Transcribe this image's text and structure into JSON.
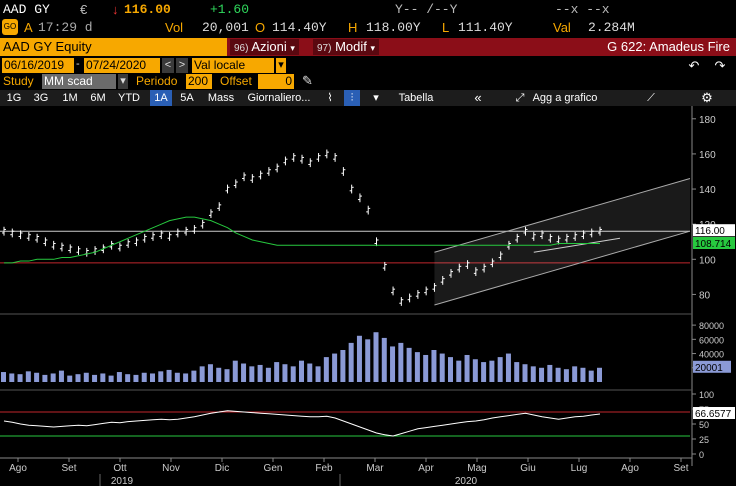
{
  "quote": {
    "ticker": "AAD GY",
    "currency": "€",
    "arrow": "↓",
    "price": "116.00",
    "change": "+1.60",
    "y_indicators": "Y--  /--Y",
    "dash_indicators": "--x  --x"
  },
  "status": {
    "icon_label": "GO",
    "flag": "A",
    "time": "17:29 d",
    "vol_label": "Vol",
    "vol_value": "20,001",
    "open_label": "O",
    "open_value": "114.40Y",
    "high_label": "H",
    "high_value": "118.00Y",
    "low_label": "L",
    "low_value": "111.40Y",
    "val_label": "Val",
    "val_value": "2.284M"
  },
  "titlebar": {
    "security": "AAD GY Equity",
    "azioni_num": "96)",
    "azioni": "Azioni",
    "modif_num": "97)",
    "modif": "Modif",
    "fund": "G 622: Amadeus Fire"
  },
  "daterow": {
    "start_date": "06/16/2019",
    "end_date": "07/24/2020",
    "nav_prev": "<",
    "nav_next": ">",
    "currency_field": "Val locale",
    "undo": "↶",
    "redo": "↷"
  },
  "studyrow": {
    "study_label": "Study",
    "study_value": "MM scad",
    "period_label": "Periodo",
    "period_value": "200",
    "offset_label": "Offset",
    "offset_value": "0"
  },
  "toolbar": {
    "items": [
      "1G",
      "3G",
      "1M",
      "6M",
      "YTD",
      "1A",
      "5A",
      "Mass",
      "Giornaliero..."
    ],
    "active": "1A",
    "tabella": "Tabella",
    "collapse": "«",
    "add_chart": "Agg a grafico"
  },
  "chart_data": [
    {
      "type": "line",
      "panel": "price",
      "y_ticks": [
        80,
        100,
        120,
        140,
        160,
        180
      ],
      "ylim": [
        70,
        185
      ],
      "last_price_label": "116.00",
      "ma_label": "108.714",
      "ma_period": 200,
      "channel_note": "regression channel",
      "series": [
        {
          "values": [
            116,
            115,
            114,
            113,
            112,
            110,
            108,
            107,
            106,
            105,
            104,
            105,
            106,
            108,
            107,
            109,
            110,
            112,
            113,
            114,
            113,
            115,
            116,
            117,
            120,
            126,
            130,
            140,
            143,
            147,
            146,
            148,
            150,
            152,
            156,
            158,
            157,
            155,
            158,
            160,
            158,
            150,
            140,
            135,
            128,
            110,
            96,
            82,
            76,
            78,
            80,
            82,
            84,
            88,
            92,
            95,
            97,
            93,
            95,
            98,
            102,
            108,
            112,
            116,
            113,
            114,
            112,
            111,
            112,
            113,
            114,
            115,
            116
          ]
        },
        {
          "values": [
            98,
            98,
            99,
            99,
            100,
            100,
            100,
            101,
            101,
            102,
            103,
            104,
            106,
            108,
            110,
            112,
            114,
            116,
            118,
            120,
            122,
            123,
            124,
            124,
            123,
            122,
            120,
            118,
            115,
            113,
            111,
            110,
            109,
            108,
            108,
            108,
            108,
            108,
            108,
            108,
            108,
            108,
            108,
            108,
            108,
            108,
            108,
            108,
            108,
            108,
            108,
            108,
            108,
            108,
            108,
            108,
            108,
            108,
            108,
            108,
            108,
            108,
            108,
            108,
            108,
            108,
            108,
            109,
            109,
            109,
            109,
            109,
            109
          ]
        }
      ],
      "hlines": [
        116,
        98
      ]
    },
    {
      "type": "bar",
      "panel": "volume",
      "y_ticks": [
        20000,
        40000,
        60000,
        80000
      ],
      "ylim": [
        0,
        90000
      ],
      "last_label": "20001",
      "values": [
        14000,
        12000,
        11000,
        15000,
        13000,
        10000,
        12000,
        16000,
        9000,
        11000,
        13000,
        10000,
        12000,
        9000,
        14000,
        11000,
        10000,
        13000,
        12000,
        15000,
        17000,
        13000,
        12000,
        16000,
        22000,
        25000,
        20000,
        18000,
        30000,
        26000,
        22000,
        24000,
        20000,
        28000,
        25000,
        22000,
        30000,
        26000,
        22000,
        35000,
        40000,
        45000,
        55000,
        65000,
        60000,
        70000,
        62000,
        50000,
        55000,
        48000,
        42000,
        38000,
        45000,
        40000,
        35000,
        30000,
        38000,
        32000,
        28000,
        30000,
        35000,
        40000,
        28000,
        25000,
        22000,
        20000,
        24000,
        20000,
        18000,
        22000,
        20000,
        16000,
        20001
      ]
    },
    {
      "type": "line",
      "panel": "rsi",
      "y_ticks": [
        0,
        25,
        50,
        75,
        100
      ],
      "ylim": [
        0,
        100
      ],
      "last_label": "66.6577",
      "hlines": [
        70,
        30
      ],
      "values": [
        55,
        53,
        50,
        48,
        47,
        46,
        45,
        46,
        47,
        48,
        47,
        49,
        51,
        53,
        52,
        54,
        55,
        56,
        57,
        58,
        57,
        58,
        60,
        62,
        65,
        68,
        70,
        72,
        71,
        70,
        69,
        68,
        67,
        66,
        65,
        64,
        63,
        62,
        62,
        63,
        60,
        55,
        50,
        45,
        40,
        35,
        32,
        30,
        34,
        38,
        42,
        44,
        46,
        48,
        50,
        52,
        54,
        55,
        57,
        60,
        62,
        64,
        66,
        68,
        65,
        62,
        60,
        58,
        60,
        62,
        63,
        65,
        66.66
      ]
    },
    {
      "type": "axis",
      "x_labels": [
        "Ago",
        "Set",
        "Ott",
        "Nov",
        "Dic",
        "Gen",
        "Feb",
        "Mar",
        "Apr",
        "Mag",
        "Giu",
        "Lug",
        "Ago",
        "Set"
      ],
      "years": [
        "2019",
        "2020"
      ]
    }
  ]
}
